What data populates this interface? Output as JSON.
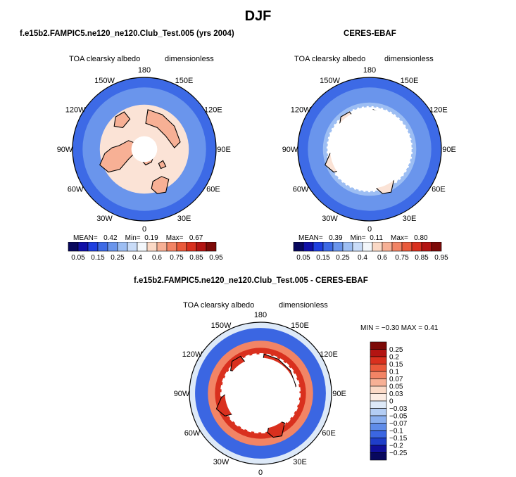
{
  "title": "DJF",
  "panels": [
    {
      "title": "f.e15b2.FAMPIC5.ne120_ne120.Club_Test.005 (yrs 2004)",
      "left_label": "TOA clearsky albedo",
      "right_label": "dimensionless",
      "stats": {
        "mean_label": "MEAN=",
        "mean": "0.42",
        "min_label": "Min=",
        "min": "0.19",
        "max_label": "Max=",
        "max": "0.67"
      }
    },
    {
      "title": "CERES-EBAF",
      "left_label": "TOA clearsky albedo",
      "right_label": "dimensionless",
      "stats": {
        "mean_label": "MEAN=",
        "mean": "0.39",
        "min_label": "Min=",
        "min": "0.11",
        "max_label": "Max=",
        "max": "0.80"
      }
    },
    {
      "title": "f.e15b2.FAMPIC5.ne120_ne120.Club_Test.005 - CERES-EBAF",
      "left_label": "TOA clearsky albedo",
      "right_label": "dimensionless",
      "stats_text": "MIN =  −0.30  MAX =    0.41"
    }
  ],
  "longitude_labels": [
    "180",
    "150E",
    "120E",
    "90E",
    "60E",
    "30E",
    "0",
    "30W",
    "60W",
    "90W",
    "120W",
    "150W"
  ],
  "colorbar_top": {
    "labels": [
      "0.05",
      "0.15",
      "0.25",
      "0.4",
      "0.6",
      "0.75",
      "0.85",
      "0.95"
    ],
    "colors": [
      "#08085e",
      "#1010a8",
      "#1e3fe0",
      "#3d6ae6",
      "#6a95ec",
      "#9dbef3",
      "#c9dcf8",
      "#f3f7fb",
      "#fbd9c6",
      "#f7b095",
      "#f28465",
      "#ea5a3b",
      "#d9301e",
      "#b31412",
      "#7d0a08"
    ]
  },
  "colorbar_diff": {
    "labels": [
      "0.25",
      "0.2",
      "0.15",
      "0.1",
      "0.07",
      "0.05",
      "0.03",
      "0",
      "−0.03",
      "−0.05",
      "−0.07",
      "−0.1",
      "−0.15",
      "−0.2",
      "−0.25"
    ],
    "colors": [
      "#7d0a08",
      "#b31412",
      "#d9301e",
      "#ea5a3b",
      "#f28465",
      "#f7b095",
      "#fbd9c6",
      "#fcece3",
      "#dde9f8",
      "#b3cdf4",
      "#8aafef",
      "#5f8ce9",
      "#3b66e2",
      "#1f3ec9",
      "#10109a",
      "#08085e"
    ]
  },
  "colors": {
    "ocean_blue": "#6a95ec",
    "deep_blue": "#3d6ae6",
    "land_salmon": "#f7b095",
    "pale": "#fbe3d6",
    "diff_red": "#d9301e",
    "diff_blue": "#3b66e2"
  }
}
